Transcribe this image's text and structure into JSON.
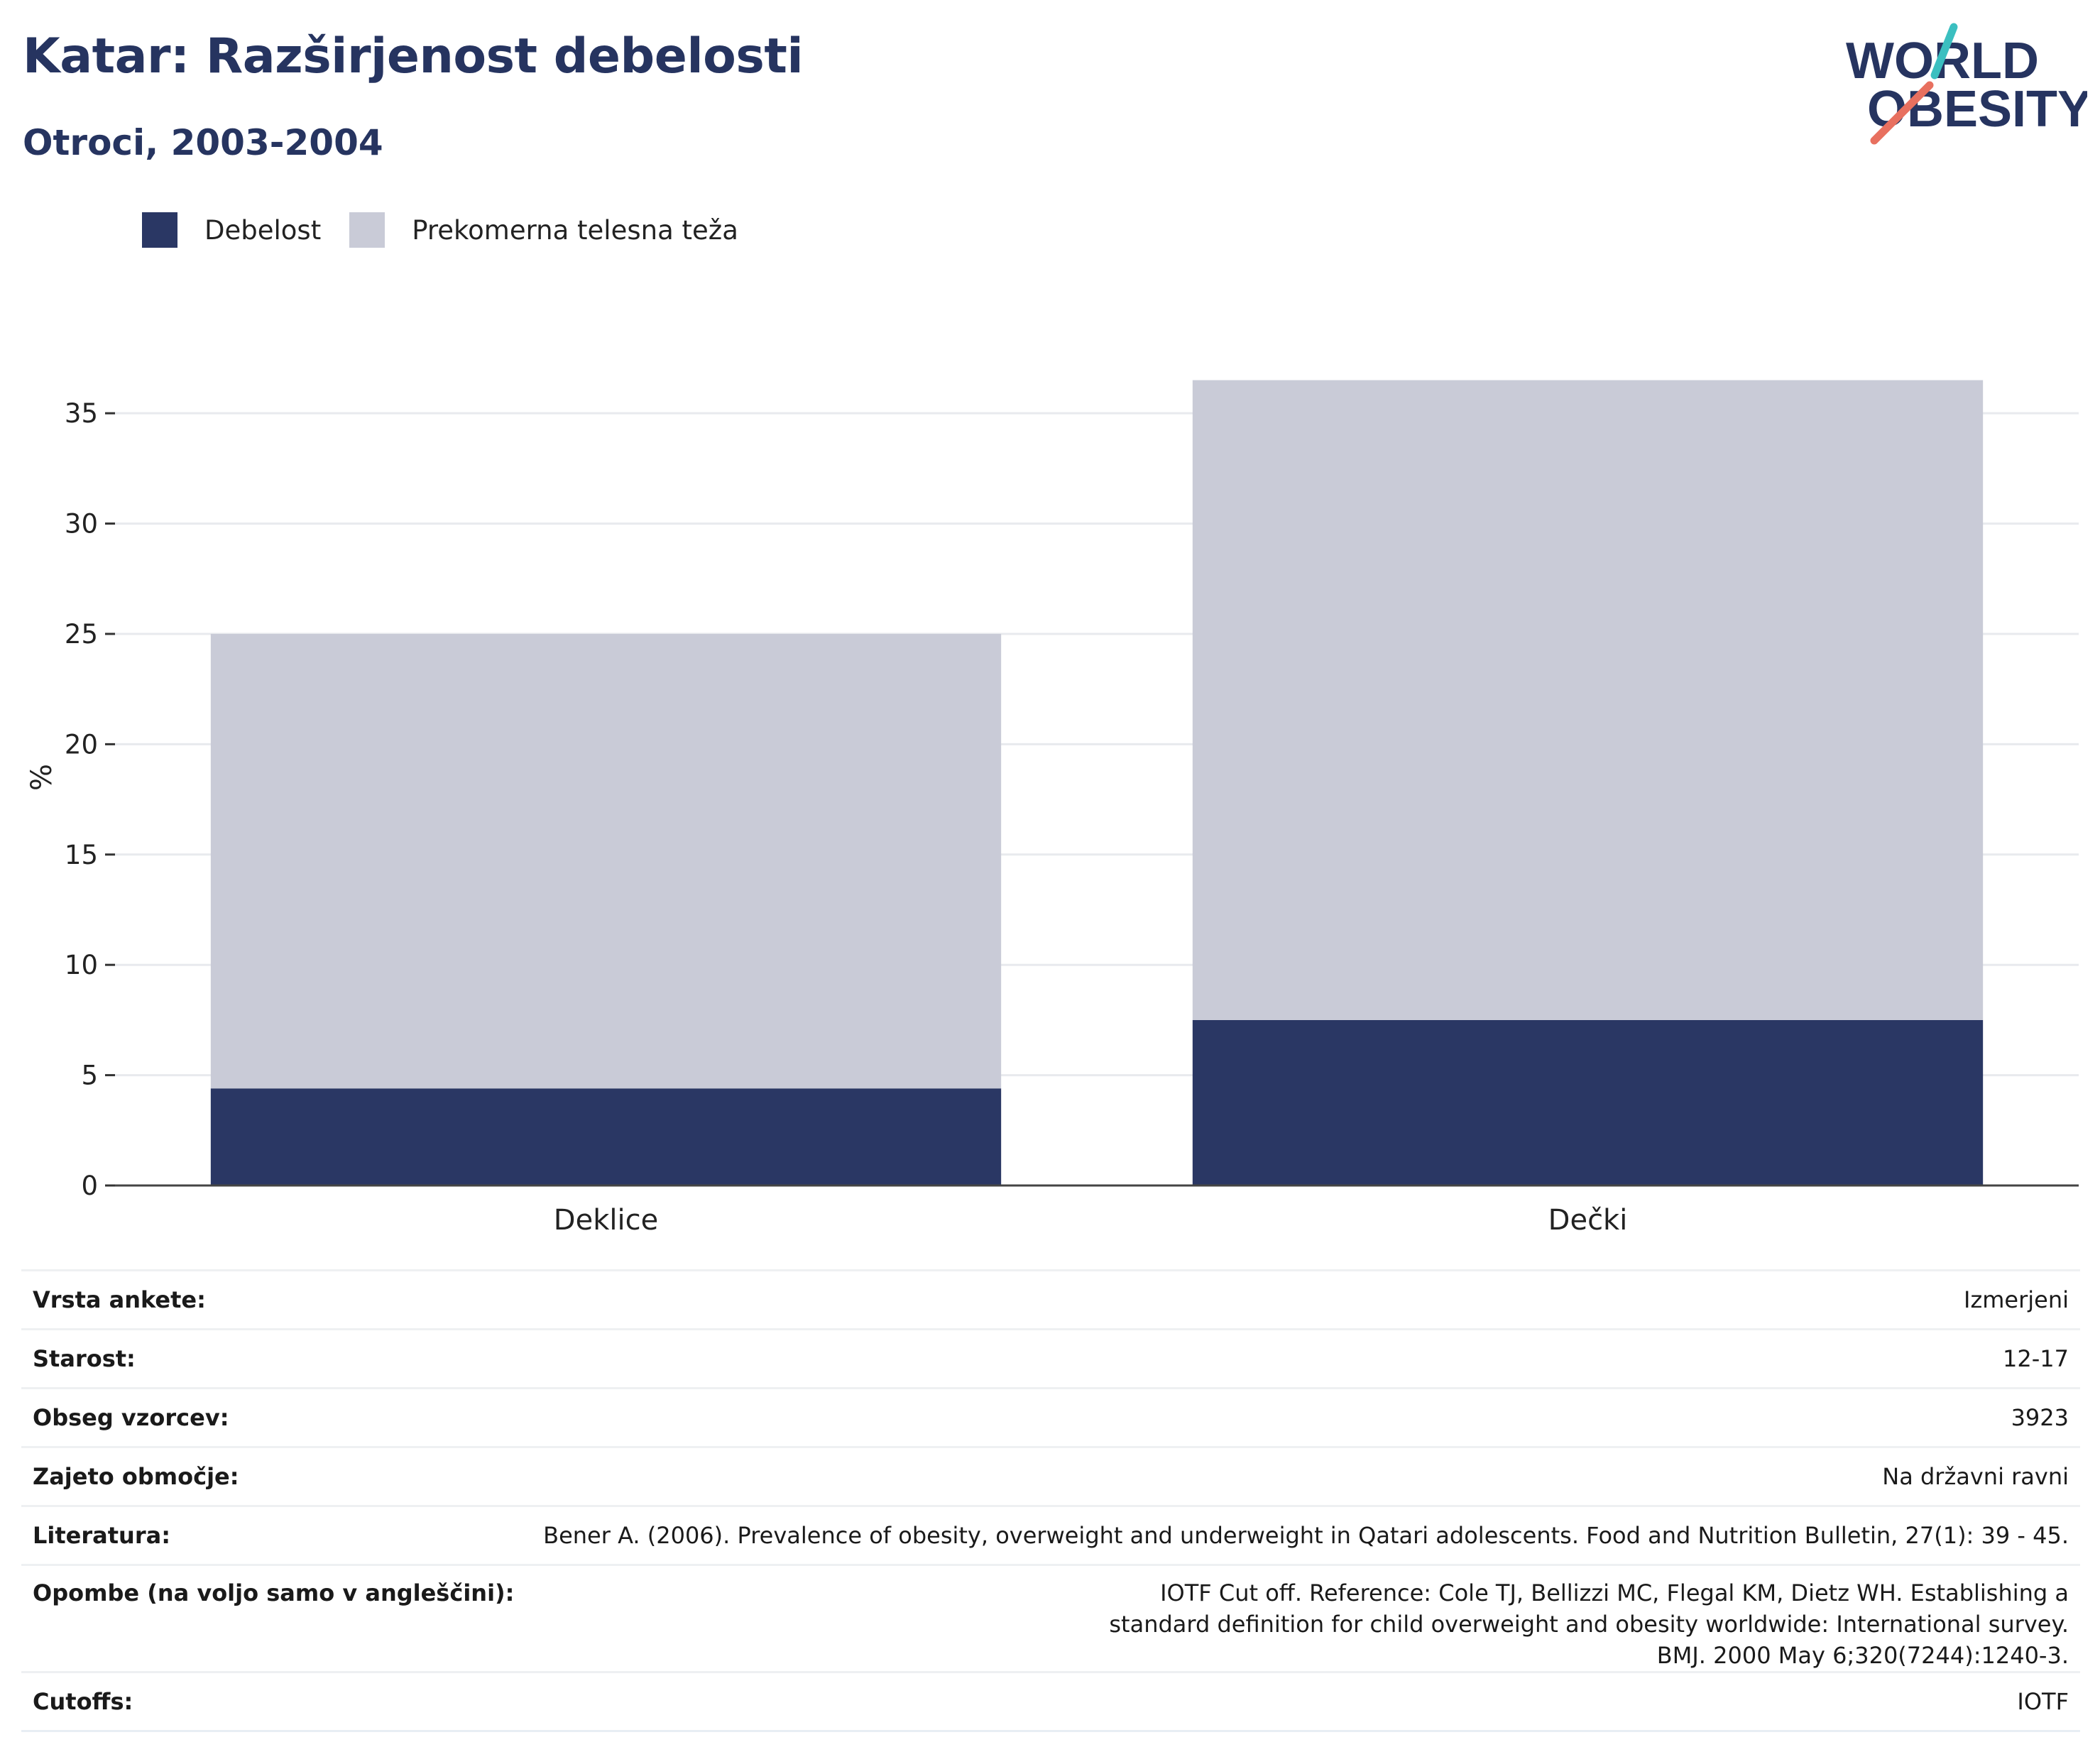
{
  "header": {
    "title": "Katar: Razširjenost debelosti",
    "subtitle": "Otroci, 2003-2004"
  },
  "logo": {
    "line1": "WORLD",
    "line2": "OBESITY",
    "accent_teal": "#3bbfc0",
    "accent_coral": "#e8705f",
    "text_color": "#263460"
  },
  "legend": [
    {
      "label": "Debelost",
      "color": "#2a3764"
    },
    {
      "label": "Prekomerna telesna teža",
      "color": "#c9cbd7"
    }
  ],
  "chart_data": {
    "type": "bar",
    "stacked": true,
    "categories": [
      "Deklice",
      "Dečki"
    ],
    "series": [
      {
        "name": "Debelost",
        "values": [
          4.4,
          7.5
        ],
        "color": "#2a3764"
      },
      {
        "name": "Prekomerna telesna teža",
        "values": [
          20.6,
          29.0
        ],
        "color": "#c9cbd7"
      }
    ],
    "ylabel": "%",
    "ylim": [
      0,
      37
    ],
    "yticks": [
      0,
      5,
      10,
      15,
      20,
      25,
      30,
      35
    ],
    "grid": true,
    "legend_position": "top-left"
  },
  "info": [
    {
      "label": "Vrsta ankete:",
      "value": "Izmerjeni"
    },
    {
      "label": "Starost:",
      "value": "12-17"
    },
    {
      "label": "Obseg vzorcev:",
      "value": "3923"
    },
    {
      "label": "Zajeto območje:",
      "value": "Na državni ravni"
    },
    {
      "label": "Literatura:",
      "value": "Bener A. (2006). Prevalence of obesity, overweight and underweight in Qatari adolescents. Food and Nutrition Bulletin, 27(1): 39 - 45."
    },
    {
      "label": "Opombe (na voljo samo v angleščini):",
      "value": "IOTF Cut off. Reference: Cole TJ, Bellizzi MC, Flegal KM, Dietz WH. Establishing a standard definition for child overweight and obesity worldwide: International survey. BMJ. 2000 May 6;320(7244):1240-3."
    },
    {
      "label": "Cutoffs:",
      "value": "IOTF"
    }
  ]
}
